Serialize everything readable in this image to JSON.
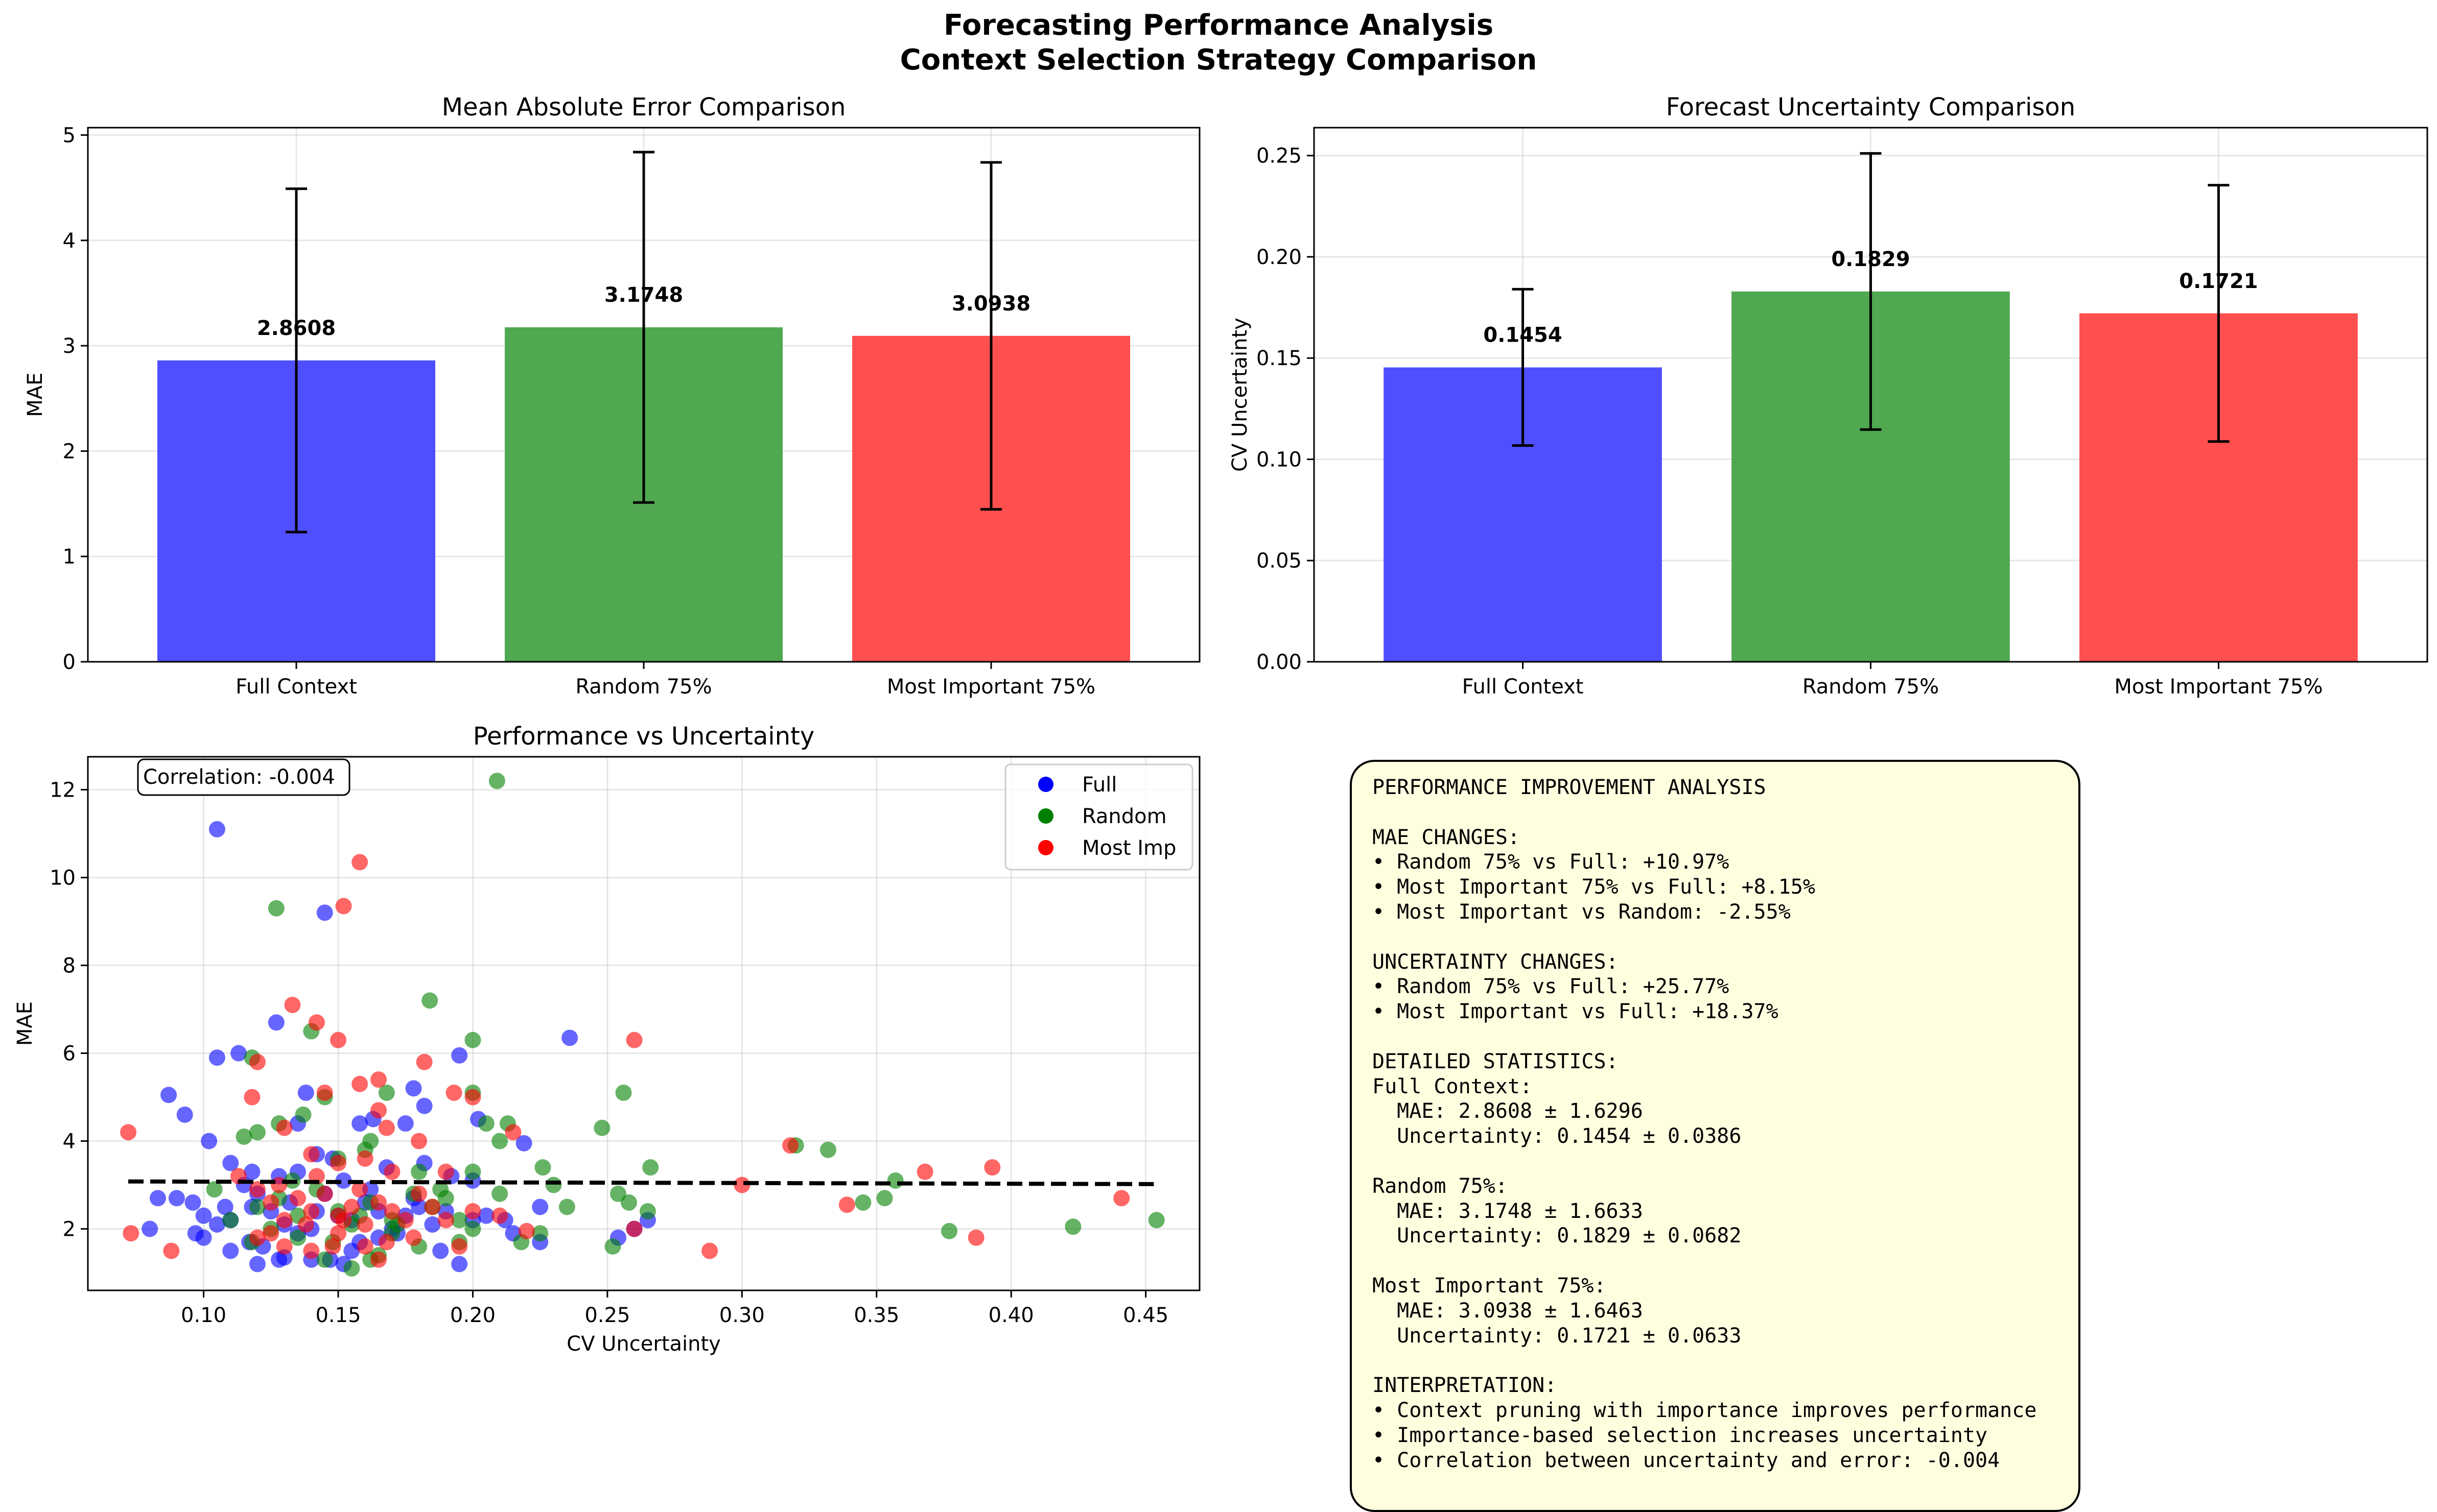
{
  "figure": {
    "suptitle_line1": "Forecasting Performance Analysis",
    "suptitle_line2": "Context Selection Strategy Comparison"
  },
  "chart_data": [
    {
      "id": "mae",
      "type": "bar",
      "title": "Mean Absolute Error Comparison",
      "xlabel": "",
      "ylabel": "MAE",
      "categories": [
        "Full Context",
        "Random 75%",
        "Most Important 75%"
      ],
      "values": [
        2.8608,
        3.1748,
        3.0938
      ],
      "errors": [
        1.6296,
        1.6633,
        1.6463
      ],
      "value_labels": [
        "2.8608",
        "3.1748",
        "3.0938"
      ],
      "colors": [
        "#4b4bff",
        "#4ca64c",
        "#ff4b4b"
      ],
      "ylim": [
        0,
        5.07
      ],
      "yticks": [
        0,
        1,
        2,
        3,
        4,
        5
      ],
      "ytick_labels": [
        "0",
        "1",
        "2",
        "3",
        "4",
        "5"
      ],
      "grid": true
    },
    {
      "id": "unc",
      "type": "bar",
      "title": "Forecast Uncertainty Comparison",
      "xlabel": "",
      "ylabel": "CV Uncertainty",
      "categories": [
        "Full Context",
        "Random 75%",
        "Most Important 75%"
      ],
      "values": [
        0.1454,
        0.1829,
        0.1721
      ],
      "errors": [
        0.0386,
        0.0682,
        0.0633
      ],
      "value_labels": [
        "0.1454",
        "0.1829",
        "0.1721"
      ],
      "colors": [
        "#4b4bff",
        "#4ca64c",
        "#ff4b4b"
      ],
      "ylim": [
        0,
        0.2638
      ],
      "yticks": [
        0,
        0.05,
        0.1,
        0.15,
        0.2,
        0.25
      ],
      "ytick_labels": [
        "0.00",
        "0.05",
        "0.10",
        "0.15",
        "0.20",
        "0.25"
      ],
      "grid": true
    },
    {
      "id": "scatter",
      "type": "scatter",
      "title": "Performance vs Uncertainty",
      "xlabel": "CV Uncertainty",
      "ylabel": "MAE",
      "xlim": [
        0.057,
        0.47
      ],
      "ylim": [
        0.6,
        12.75
      ],
      "xticks": [
        0.1,
        0.15,
        0.2,
        0.25,
        0.3,
        0.35,
        0.4,
        0.45
      ],
      "xtick_labels": [
        "0.10",
        "0.15",
        "0.20",
        "0.25",
        "0.30",
        "0.35",
        "0.40",
        "0.45"
      ],
      "yticks": [
        2,
        4,
        6,
        8,
        10,
        12
      ],
      "ytick_labels": [
        "2",
        "4",
        "6",
        "8",
        "10",
        "12"
      ],
      "grid": true,
      "annotation": "Correlation: -0.004",
      "trendline": {
        "x": [
          0.072,
          0.453
        ],
        "y": [
          3.08,
          3.02
        ]
      },
      "legend_position": "upper right",
      "series": [
        {
          "name": "Full",
          "color": "#0000ff",
          "legend_color": "#0000ff",
          "points": [
            [
              0.105,
              11.1
            ],
            [
              0.145,
              9.2
            ],
            [
              0.127,
              6.7
            ],
            [
              0.113,
              6.0
            ],
            [
              0.105,
              5.9
            ],
            [
              0.087,
              5.05
            ],
            [
              0.093,
              4.6
            ],
            [
              0.138,
              5.1
            ],
            [
              0.178,
              5.2
            ],
            [
              0.195,
              5.95
            ],
            [
              0.236,
              6.35
            ],
            [
              0.135,
              4.4
            ],
            [
              0.163,
              4.5
            ],
            [
              0.175,
              4.4
            ],
            [
              0.202,
              4.5
            ],
            [
              0.182,
              4.8
            ],
            [
              0.219,
              3.95
            ],
            [
              0.102,
              4.0
            ],
            [
              0.11,
              3.5
            ],
            [
              0.115,
              3.0
            ],
            [
              0.128,
              3.2
            ],
            [
              0.135,
              3.3
            ],
            [
              0.148,
              3.6
            ],
            [
              0.152,
              3.1
            ],
            [
              0.168,
              3.4
            ],
            [
              0.182,
              3.5
            ],
            [
              0.192,
              3.2
            ],
            [
              0.2,
              3.1
            ],
            [
              0.096,
              2.6
            ],
            [
              0.1,
              2.3
            ],
            [
              0.105,
              2.1
            ],
            [
              0.11,
              2.2
            ],
            [
              0.118,
              2.5
            ],
            [
              0.12,
              2.8
            ],
            [
              0.125,
              2.4
            ],
            [
              0.13,
              2.1
            ],
            [
              0.132,
              2.6
            ],
            [
              0.14,
              2.0
            ],
            [
              0.145,
              2.8
            ],
            [
              0.15,
              2.3
            ],
            [
              0.155,
              2.2
            ],
            [
              0.16,
              2.6
            ],
            [
              0.165,
              2.4
            ],
            [
              0.17,
              2.0
            ],
            [
              0.175,
              2.3
            ],
            [
              0.18,
              2.5
            ],
            [
              0.185,
              2.1
            ],
            [
              0.19,
              2.4
            ],
            [
              0.2,
              2.2
            ],
            [
              0.212,
              2.2
            ],
            [
              0.225,
              2.5
            ],
            [
              0.225,
              1.7
            ],
            [
              0.08,
              2.0
            ],
            [
              0.09,
              2.7
            ],
            [
              0.1,
              1.8
            ],
            [
              0.11,
              1.5
            ],
            [
              0.12,
              1.2
            ],
            [
              0.13,
              1.35
            ],
            [
              0.14,
              1.3
            ],
            [
              0.147,
              1.3
            ],
            [
              0.155,
              1.5
            ],
            [
              0.165,
              1.8
            ],
            [
              0.195,
              1.2
            ],
            [
              0.254,
              1.8
            ],
            [
              0.26,
              2.0
            ],
            [
              0.265,
              2.2
            ],
            [
              0.122,
              1.6
            ],
            [
              0.128,
              1.3
            ],
            [
              0.135,
              1.9
            ],
            [
              0.142,
              2.4
            ],
            [
              0.158,
              1.7
            ],
            [
              0.172,
              1.9
            ],
            [
              0.188,
              1.5
            ],
            [
              0.205,
              2.3
            ],
            [
              0.215,
              1.9
            ],
            [
              0.083,
              2.7
            ],
            [
              0.097,
              1.9
            ],
            [
              0.108,
              2.5
            ],
            [
              0.117,
              1.7
            ],
            [
              0.152,
              1.2
            ],
            [
              0.162,
              2.9
            ],
            [
              0.178,
              2.7
            ],
            [
              0.118,
              3.3
            ],
            [
              0.142,
              3.7
            ],
            [
              0.158,
              4.4
            ]
          ]
        },
        {
          "name": "Random",
          "color": "#008000",
          "legend_color": "#008000",
          "points": [
            [
              0.209,
              12.2
            ],
            [
              0.127,
              9.3
            ],
            [
              0.184,
              7.2
            ],
            [
              0.14,
              6.5
            ],
            [
              0.2,
              6.3
            ],
            [
              0.118,
              5.9
            ],
            [
              0.145,
              5.0
            ],
            [
              0.168,
              5.1
            ],
            [
              0.2,
              5.1
            ],
            [
              0.256,
              5.1
            ],
            [
              0.248,
              4.3
            ],
            [
              0.32,
              3.9
            ],
            [
              0.332,
              3.8
            ],
            [
              0.357,
              3.1
            ],
            [
              0.266,
              3.4
            ],
            [
              0.226,
              3.4
            ],
            [
              0.205,
              4.4
            ],
            [
              0.21,
              4.0
            ],
            [
              0.213,
              4.4
            ],
            [
              0.162,
              4.0
            ],
            [
              0.137,
              4.6
            ],
            [
              0.128,
              4.4
            ],
            [
              0.115,
              4.1
            ],
            [
              0.12,
              4.2
            ],
            [
              0.15,
              3.6
            ],
            [
              0.16,
              3.8
            ],
            [
              0.18,
              3.3
            ],
            [
              0.19,
              2.7
            ],
            [
              0.11,
              2.2
            ],
            [
              0.12,
              2.5
            ],
            [
              0.128,
              2.7
            ],
            [
              0.135,
              2.3
            ],
            [
              0.142,
              2.9
            ],
            [
              0.15,
              2.4
            ],
            [
              0.155,
              2.1
            ],
            [
              0.162,
              2.6
            ],
            [
              0.17,
              2.2
            ],
            [
              0.178,
              2.8
            ],
            [
              0.185,
              2.5
            ],
            [
              0.195,
              2.2
            ],
            [
              0.2,
              2.0
            ],
            [
              0.21,
              2.8
            ],
            [
              0.218,
              1.7
            ],
            [
              0.23,
              3.0
            ],
            [
              0.235,
              2.5
            ],
            [
              0.254,
              2.8
            ],
            [
              0.258,
              2.6
            ],
            [
              0.265,
              2.4
            ],
            [
              0.345,
              2.6
            ],
            [
              0.353,
              2.7
            ],
            [
              0.377,
              1.95
            ],
            [
              0.423,
              2.05
            ],
            [
              0.454,
              2.2
            ],
            [
              0.252,
              1.6
            ],
            [
              0.225,
              1.9
            ],
            [
              0.195,
              1.7
            ],
            [
              0.18,
              1.6
            ],
            [
              0.165,
              1.4
            ],
            [
              0.155,
              1.1
            ],
            [
              0.145,
              1.3
            ],
            [
              0.135,
              1.8
            ],
            [
              0.125,
              2.0
            ],
            [
              0.118,
              1.7
            ],
            [
              0.17,
              1.9
            ],
            [
              0.148,
              1.7
            ],
            [
              0.172,
              2.1
            ],
            [
              0.162,
              1.3
            ],
            [
              0.2,
              3.3
            ],
            [
              0.104,
              2.9
            ],
            [
              0.133,
              3.1
            ],
            [
              0.158,
              2.3
            ],
            [
              0.188,
              2.9
            ]
          ]
        },
        {
          "name": "Most Imp",
          "color": "#ff0000",
          "legend_color": "#ff0000",
          "points": [
            [
              0.158,
              10.35
            ],
            [
              0.152,
              9.35
            ],
            [
              0.133,
              7.1
            ],
            [
              0.142,
              6.7
            ],
            [
              0.15,
              6.3
            ],
            [
              0.26,
              6.3
            ],
            [
              0.12,
              5.8
            ],
            [
              0.145,
              5.1
            ],
            [
              0.158,
              5.3
            ],
            [
              0.165,
              5.4
            ],
            [
              0.182,
              5.8
            ],
            [
              0.193,
              5.1
            ],
            [
              0.2,
              5.0
            ],
            [
              0.165,
              4.7
            ],
            [
              0.168,
              4.3
            ],
            [
              0.215,
              4.2
            ],
            [
              0.118,
              5.0
            ],
            [
              0.13,
              4.3
            ],
            [
              0.14,
              3.7
            ],
            [
              0.15,
              3.5
            ],
            [
              0.16,
              3.6
            ],
            [
              0.17,
              3.3
            ],
            [
              0.18,
              4.0
            ],
            [
              0.19,
              3.3
            ],
            [
              0.072,
              4.2
            ],
            [
              0.318,
              3.9
            ],
            [
              0.368,
              3.3
            ],
            [
              0.393,
              3.4
            ],
            [
              0.3,
              3.0
            ],
            [
              0.12,
              2.9
            ],
            [
              0.125,
              2.6
            ],
            [
              0.13,
              2.2
            ],
            [
              0.135,
              2.7
            ],
            [
              0.14,
              2.4
            ],
            [
              0.145,
              2.8
            ],
            [
              0.15,
              2.3
            ],
            [
              0.155,
              2.5
            ],
            [
              0.16,
              2.1
            ],
            [
              0.165,
              2.6
            ],
            [
              0.17,
              2.4
            ],
            [
              0.175,
              2.2
            ],
            [
              0.18,
              2.8
            ],
            [
              0.185,
              2.5
            ],
            [
              0.19,
              2.2
            ],
            [
              0.2,
              2.4
            ],
            [
              0.21,
              2.3
            ],
            [
              0.22,
              1.95
            ],
            [
              0.26,
              2.0
            ],
            [
              0.288,
              1.5
            ],
            [
              0.339,
              2.55
            ],
            [
              0.387,
              1.8
            ],
            [
              0.441,
              2.7
            ],
            [
              0.073,
              1.9
            ],
            [
              0.088,
              1.5
            ],
            [
              0.12,
              1.8
            ],
            [
              0.13,
              1.6
            ],
            [
              0.14,
              1.5
            ],
            [
              0.15,
              1.9
            ],
            [
              0.16,
              1.6
            ],
            [
              0.165,
              1.3
            ],
            [
              0.178,
              1.8
            ],
            [
              0.195,
              1.6
            ],
            [
              0.113,
              3.2
            ],
            [
              0.128,
              3.0
            ],
            [
              0.138,
              2.1
            ],
            [
              0.148,
              1.6
            ],
            [
              0.158,
              2.9
            ],
            [
              0.168,
              1.7
            ],
            [
              0.125,
              1.9
            ],
            [
              0.142,
              3.2
            ],
            [
              0.152,
              2.2
            ]
          ]
        }
      ]
    }
  ],
  "stats_box": {
    "lines": [
      "PERFORMANCE IMPROVEMENT ANALYSIS",
      "",
      "MAE CHANGES:",
      "• Random 75% vs Full: +10.97%",
      "• Most Important 75% vs Full: +8.15%",
      "• Most Important vs Random: -2.55%",
      "",
      "UNCERTAINTY CHANGES:",
      "• Random 75% vs Full: +25.77%",
      "• Most Important vs Full: +18.37%",
      "",
      "DETAILED STATISTICS:",
      "Full Context:",
      "  MAE: 2.8608 ± 1.6296",
      "  Uncertainty: 0.1454 ± 0.0386",
      "",
      "Random 75%:",
      "  MAE: 3.1748 ± 1.6633",
      "  Uncertainty: 0.1829 ± 0.0682",
      "",
      "Most Important 75%:",
      "  MAE: 3.0938 ± 1.6463",
      "  Uncertainty: 0.1721 ± 0.0633",
      "",
      "INTERPRETATION:",
      "• Context pruning with importance improves performance",
      "• Importance-based selection increases uncertainty",
      "• Correlation between uncertainty and error: -0.004"
    ]
  }
}
